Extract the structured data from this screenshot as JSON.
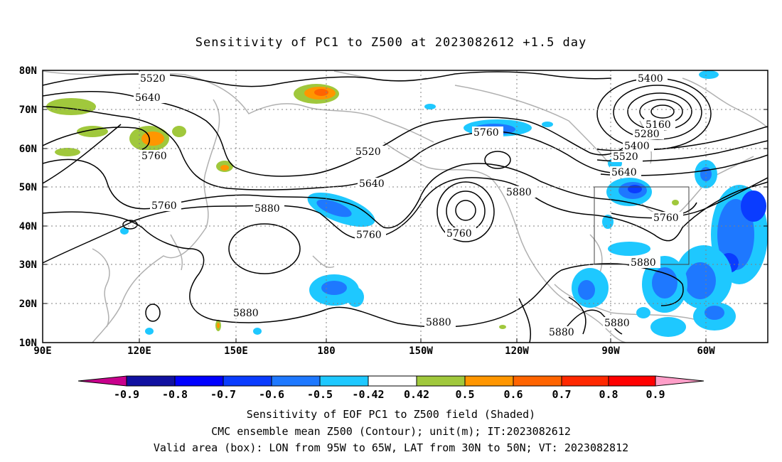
{
  "title": "Sensitivity of PC1 to Z500 at 2023082612 +1.5 day",
  "lat_labels": [
    "80N",
    "70N",
    "60N",
    "50N",
    "40N",
    "30N",
    "20N",
    "10N"
  ],
  "lon_labels": [
    "90E",
    "120E",
    "150E",
    "180",
    "150W",
    "120W",
    "90W",
    "60W"
  ],
  "contour_labels": [
    "5520",
    "5640",
    "5760",
    "5520",
    "5640",
    "5760",
    "5880",
    "5760",
    "5760",
    "5880",
    "5880",
    "5400",
    "5160",
    "5280",
    "5400",
    "5520",
    "5640",
    "5760",
    "5880",
    "5880",
    "5880",
    "5880"
  ],
  "colorbar": {
    "labels": [
      "-0.9",
      "-0.8",
      "-0.7",
      "-0.6",
      "-0.5",
      "-0.42",
      "0.42",
      "0.5",
      "0.6",
      "0.7",
      "0.8",
      "0.9"
    ],
    "colors": [
      "#c8008c",
      "#1010a0",
      "#0000ff",
      "#0a3cff",
      "#1e78ff",
      "#1ec8ff",
      "#ffffff",
      "#a0c83c",
      "#ff9600",
      "#ff6400",
      "#ff2800",
      "#ff0000",
      "#ff9ec8"
    ]
  },
  "caption": {
    "line1": "Sensitivity of EOF PC1 to Z500 field (Shaded)",
    "line2": "CMC ensemble mean Z500 (Contour); unit(m); IT:2023082612",
    "line3": "Valid area (box): LON from 95W to 65W, LAT from 30N to 50N; VT: 2023082812"
  }
}
